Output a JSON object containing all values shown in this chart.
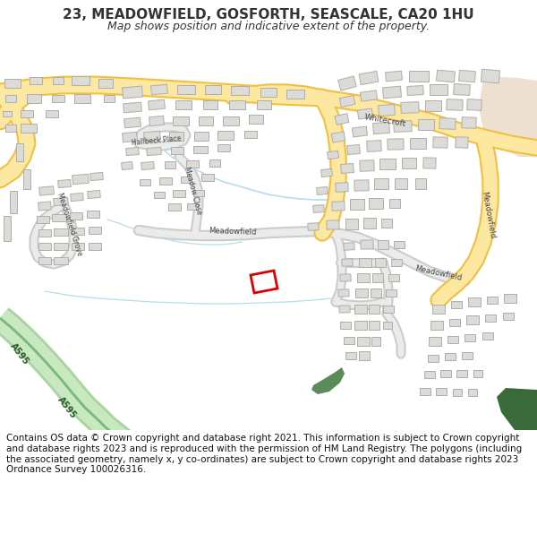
{
  "title": "23, MEADOWFIELD, GOSFORTH, SEASCALE, CA20 1HU",
  "subtitle": "Map shows position and indicative extent of the property.",
  "footer": "Contains OS data © Crown copyright and database right 2021. This information is subject to Crown copyright and database rights 2023 and is reproduced with the permission of HM Land Registry. The polygons (including the associated geometry, namely x, y co-ordinates) are subject to Crown copyright and database rights 2023 Ordnance Survey 100026316.",
  "map_bg": "#f2f0ec",
  "road_yellow_fill": "#fce8a0",
  "road_yellow_stroke": "#f0c040",
  "road_minor_fill": "#e8e6e2",
  "road_minor_stroke": "#c8c6c2",
  "building_fill": "#dddbd7",
  "building_stroke": "#b0aea8",
  "red": "#dd0000",
  "green_dark": "#5a8c5a",
  "green_light": "#90c890",
  "water": "#b8dce8",
  "tan": "#e8ddd0",
  "text_dark": "#333333",
  "title_fs": 11,
  "subtitle_fs": 9,
  "footer_fs": 7.5
}
